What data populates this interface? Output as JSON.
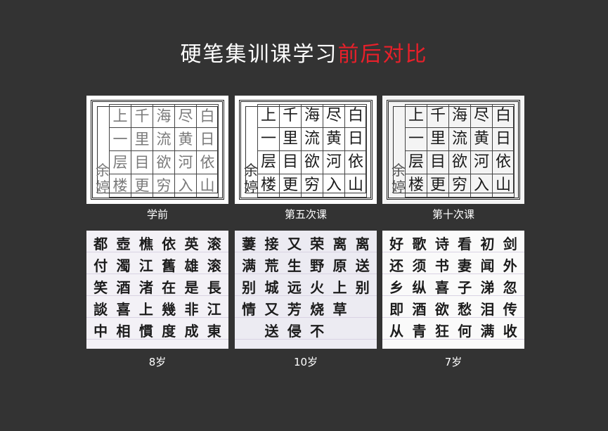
{
  "title": {
    "main": "硬笔集训课学习",
    "accent": "前后对比",
    "accent_color": "#e8202a"
  },
  "top_row": [
    {
      "caption": "学前",
      "rows": [
        [
          "上",
          "千",
          "海",
          "尽",
          "白"
        ],
        [
          "一",
          "里",
          "流",
          "黄",
          "日"
        ],
        [
          "层",
          "目",
          "欲",
          "河",
          "依"
        ],
        [
          "楼",
          "更",
          "穷",
          "入",
          "山"
        ]
      ],
      "name": [
        "余",
        "婷"
      ],
      "style": "faint"
    },
    {
      "caption": "第五次课",
      "rows": [
        [
          "上",
          "千",
          "海",
          "尽",
          "白"
        ],
        [
          "一",
          "里",
          "流",
          "黄",
          "日"
        ],
        [
          "层",
          "目",
          "欲",
          "河",
          "依"
        ],
        [
          "楼",
          "更",
          "穷",
          "入",
          "山"
        ]
      ],
      "name": [
        "余",
        "婷"
      ],
      "style": "bold"
    },
    {
      "caption": "第十次课",
      "rows": [
        [
          "上",
          "千",
          "海",
          "尽",
          "白"
        ],
        [
          "一",
          "里",
          "流",
          "黄",
          "日"
        ],
        [
          "层",
          "目",
          "欲",
          "河",
          "依"
        ],
        [
          "楼",
          "更",
          "穷",
          "入",
          "山"
        ]
      ],
      "name": [
        "余",
        "婷"
      ],
      "style": "bold"
    }
  ],
  "bottom_row": [
    {
      "caption": "8岁",
      "columns": [
        [
          "滚",
          "滚",
          "長",
          "江",
          "東"
        ],
        [
          "英",
          "雄",
          "是",
          "非",
          "成"
        ],
        [
          "依",
          "舊",
          "在",
          "幾",
          "度"
        ],
        [
          "樵",
          "江",
          "渚",
          "上",
          "慣"
        ],
        [
          "壺",
          "濁",
          "酒",
          "喜",
          "相"
        ],
        [
          "都",
          "付",
          "笑",
          "談",
          "中"
        ]
      ]
    },
    {
      "caption": "10岁",
      "columns": [
        [
          "离",
          "送",
          "别",
          "",
          ""
        ],
        [
          "离",
          "原",
          "上",
          "草",
          ""
        ],
        [
          "荣",
          "野",
          "火",
          "烧",
          "不"
        ],
        [
          "又",
          "生",
          "远",
          "芳",
          "侵"
        ],
        [
          "接",
          "荒",
          "城",
          "又",
          "送"
        ],
        [
          "萋",
          "满",
          "别",
          "情",
          ""
        ]
      ]
    },
    {
      "caption": "7岁",
      "columns": [
        [
          "剑",
          "外",
          "忽",
          "传",
          "收"
        ],
        [
          "初",
          "闻",
          "涕",
          "泪",
          "满"
        ],
        [
          "看",
          "妻",
          "子",
          "愁",
          "何"
        ],
        [
          "诗",
          "书",
          "喜",
          "欲",
          "狂"
        ],
        [
          "歌",
          "须",
          "纵",
          "酒",
          "青"
        ],
        [
          "好",
          "还",
          "乡",
          "即",
          "从"
        ]
      ]
    }
  ]
}
